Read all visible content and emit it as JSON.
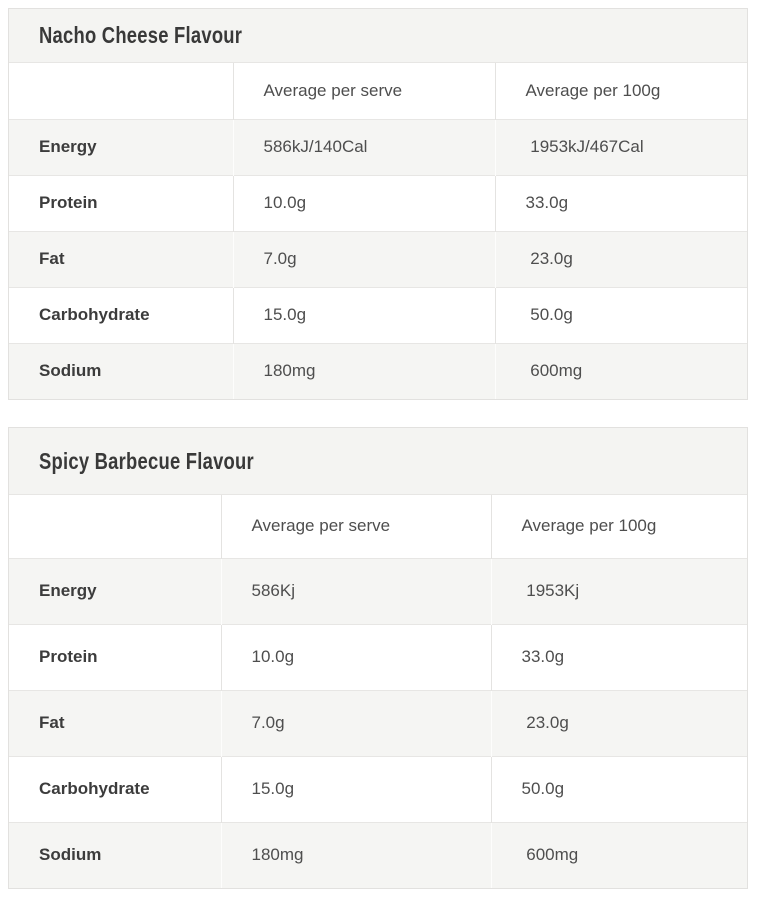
{
  "tables": [
    {
      "title": "Nacho Cheese Flavour",
      "column_headers": {
        "label": "",
        "per_serve": "Average per serve",
        "per_100g": "Average per 100g"
      },
      "rows": [
        {
          "label": "Energy",
          "per_serve": "586kJ/140Cal",
          "per_100g": " 1953kJ/467Cal"
        },
        {
          "label": "Protein",
          "per_serve": "10.0g",
          "per_100g": "33.0g"
        },
        {
          "label": "Fat",
          "per_serve": "7.0g",
          "per_100g": " 23.0g"
        },
        {
          "label": "Carbohydrate",
          "per_serve": "15.0g",
          "per_100g": " 50.0g"
        },
        {
          "label": "Sodium",
          "per_serve": "180mg",
          "per_100g": " 600mg"
        }
      ]
    },
    {
      "title": "Spicy Barbecue Flavour",
      "column_headers": {
        "label": "",
        "per_serve": "Average per serve",
        "per_100g": "Average per 100g"
      },
      "rows": [
        {
          "label": "Energy",
          "per_serve": "586Kj",
          "per_100g": " 1953Kj"
        },
        {
          "label": "Protein",
          "per_serve": "10.0g",
          "per_100g": "33.0g"
        },
        {
          "label": "Fat",
          "per_serve": "7.0g",
          "per_100g": " 23.0g"
        },
        {
          "label": "Carbohydrate",
          "per_serve": "15.0g",
          "per_100g": "50.0g"
        },
        {
          "label": "Sodium",
          "per_serve": "180mg",
          "per_100g": " 600mg"
        }
      ]
    }
  ],
  "colors": {
    "stripe_background": "#f5f5f3",
    "title_band_background": "#f4f4f2",
    "border": "#e4e3e1",
    "title_text": "#393939",
    "label_text": "#3c3c3c",
    "value_text": "#4e4e4e"
  }
}
